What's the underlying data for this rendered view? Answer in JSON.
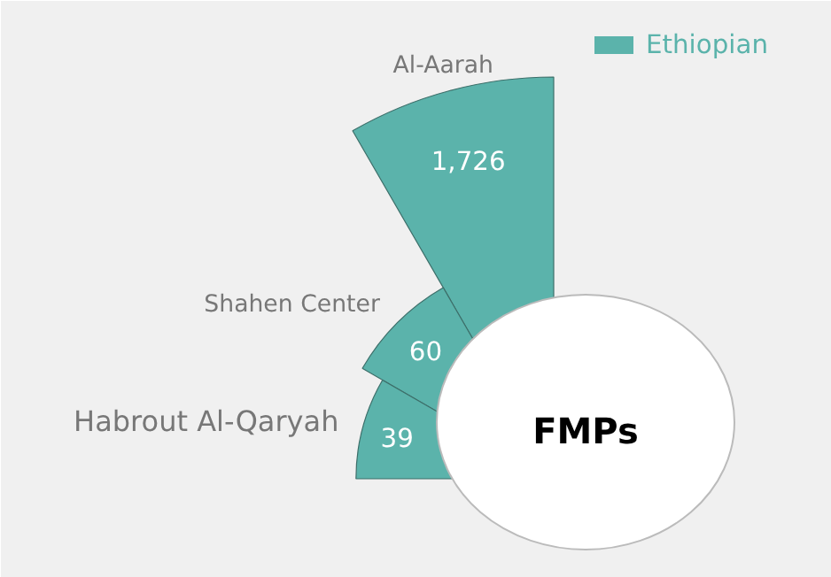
{
  "chart_data": {
    "type": "other",
    "categories": [
      "Al-Aarah",
      "Shahen Center",
      "Habrout Al-Qaryah"
    ],
    "series": [
      {
        "name": "Ethiopian",
        "color": "#5bb3ab",
        "values": [
          1726,
          60,
          39
        ],
        "value_labels": [
          "1,726",
          "60",
          "39"
        ]
      }
    ],
    "legend": "top right",
    "annotations": [
      "FMPs"
    ]
  }
}
